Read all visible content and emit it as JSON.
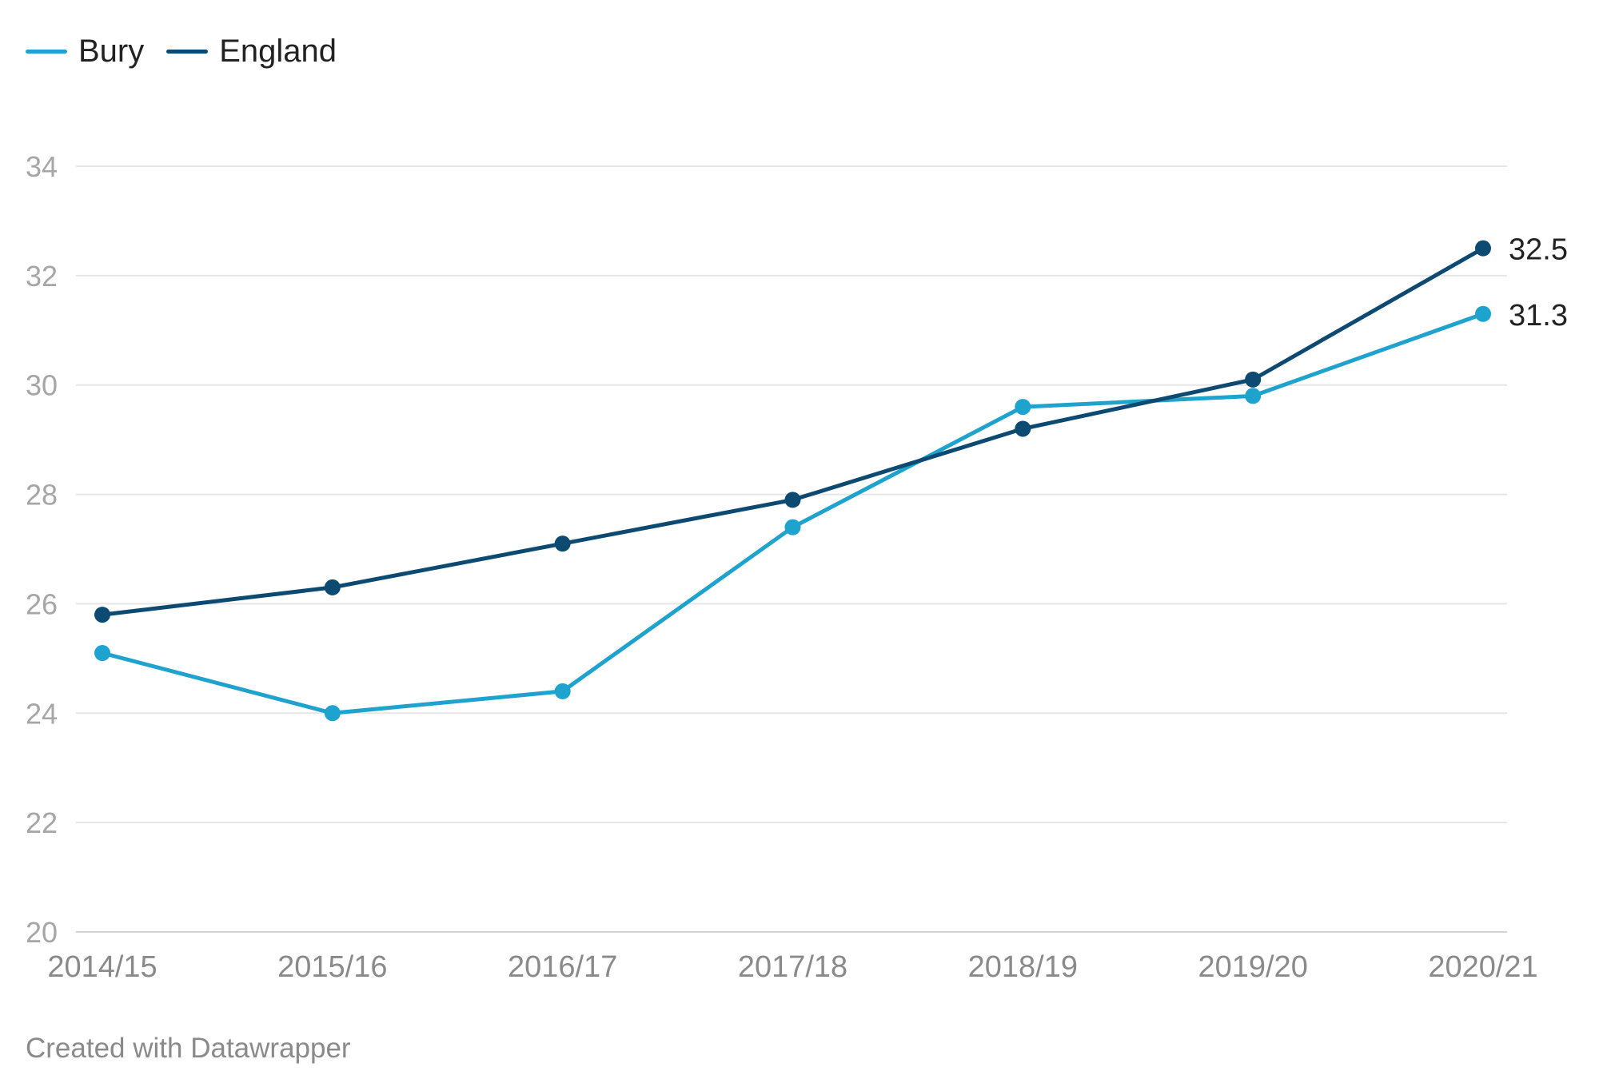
{
  "legend": [
    {
      "name": "Bury",
      "color": "#1ea3cf"
    },
    {
      "name": "England",
      "color": "#0d4a72"
    }
  ],
  "footer": "Created with Datawrapper",
  "chart_data": {
    "type": "line",
    "categories": [
      "2014/15",
      "2015/16",
      "2016/17",
      "2017/18",
      "2018/19",
      "2019/20",
      "2020/21"
    ],
    "series": [
      {
        "name": "Bury",
        "color": "#1ea3cf",
        "values": [
          25.1,
          24.0,
          24.4,
          27.4,
          29.6,
          29.8,
          31.3
        ],
        "end_label": "31.3"
      },
      {
        "name": "England",
        "color": "#0d4a72",
        "values": [
          25.8,
          26.3,
          27.1,
          27.9,
          29.2,
          30.1,
          32.5
        ],
        "end_label": "32.5"
      }
    ],
    "yticks": [
      20,
      22,
      24,
      26,
      28,
      30,
      32,
      34
    ],
    "ylim": [
      20,
      34
    ],
    "grid": true,
    "legend_position": "top-left"
  }
}
